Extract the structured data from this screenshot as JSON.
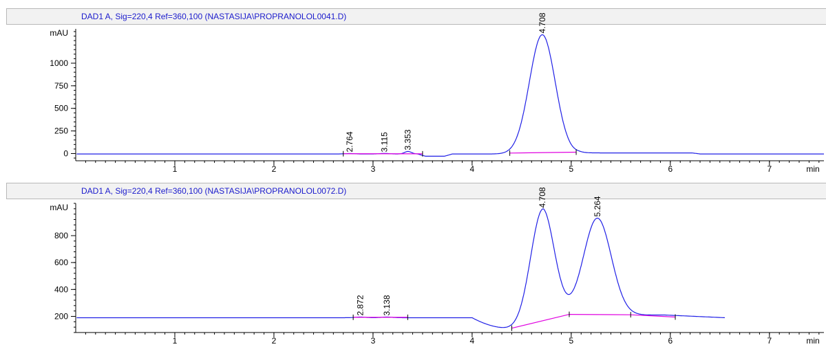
{
  "panels": [
    {
      "title": "DAD1 A, Sig=220,4 Ref=360,100 (NASTASIJA\\PROPRANOLOL0041.D)"
    },
    {
      "title": "DAD1 A, Sig=220,4 Ref=360,100 (NASTASIJA\\PROPRANOLOL0072.D)"
    }
  ],
  "colors": {
    "signal": "#1f1fe6",
    "baseline": "#e000e0",
    "axis": "#000000",
    "title": "#1a1acc"
  },
  "chart_data": [
    {
      "type": "line",
      "title": "DAD1 A, Sig=220,4 Ref=360,100 (NASTASIJA\\PROPRANOLOL0041.D)",
      "xlabel": "min",
      "ylabel": "mAU",
      "xlim": [
        0,
        7.55
      ],
      "ylim": [
        -80,
        1380
      ],
      "xticks": [
        1,
        2,
        3,
        4,
        5,
        6,
        7
      ],
      "yticks": [
        0,
        250,
        500,
        750,
        1000
      ],
      "baseline_level": -5,
      "trace_end": 7.55,
      "peaks": [
        {
          "rt": 2.764,
          "label": "2.764",
          "height": 5,
          "width": 0.05
        },
        {
          "rt": 3.115,
          "label": "3.115",
          "height": 6,
          "width": 0.05
        },
        {
          "rt": 3.353,
          "label": "3.353",
          "height": 28,
          "width": 0.035
        },
        {
          "rt": 4.708,
          "label": "4.708",
          "height": 1320,
          "width": 0.13
        }
      ],
      "features": [
        {
          "start": 3.45,
          "end": 3.8,
          "value": -25
        },
        {
          "start": 5.0,
          "end": 6.3,
          "value": 12
        }
      ],
      "integration_baselines": [
        {
          "x": [
            2.7,
            3.5
          ],
          "y": [
            -2,
            -3
          ]
        },
        {
          "x": [
            4.38,
            5.05
          ],
          "y": [
            5,
            15
          ]
        }
      ]
    },
    {
      "type": "line",
      "title": "DAD1 A, Sig=220,4 Ref=360,100 (NASTASIJA\\PROPRANOLOL0072.D)",
      "xlabel": "min",
      "ylabel": "mAU",
      "xlim": [
        0,
        7.55
      ],
      "ylim": [
        80,
        1040
      ],
      "xticks": [
        1,
        2,
        3,
        4,
        5,
        6,
        7
      ],
      "yticks": [
        200,
        400,
        600,
        800
      ],
      "baseline_level": 190,
      "trace_end": 6.55,
      "peaks": [
        {
          "rt": 2.872,
          "label": "2.872",
          "height": 5,
          "width": 0.05
        },
        {
          "rt": 3.138,
          "label": "3.138",
          "height": 5,
          "width": 0.05
        },
        {
          "rt": 4.708,
          "label": "4.708",
          "height": 800,
          "width": 0.12
        },
        {
          "rt": 5.264,
          "label": "5.264",
          "height": 720,
          "width": 0.14
        }
      ],
      "features": [
        {
          "start": 4.0,
          "end": 4.72,
          "value": -80,
          "shape": "dip",
          "center": 4.4
        },
        {
          "start": 4.4,
          "end": 6.55,
          "value": 20,
          "shape": "rise"
        }
      ],
      "integration_baselines": [
        {
          "x": [
            2.8,
            3.35
          ],
          "y": [
            193,
            193
          ]
        },
        {
          "x": [
            4.4,
            4.98,
            5.6,
            6.05
          ],
          "y": [
            112,
            215,
            212,
            195
          ]
        }
      ]
    }
  ]
}
